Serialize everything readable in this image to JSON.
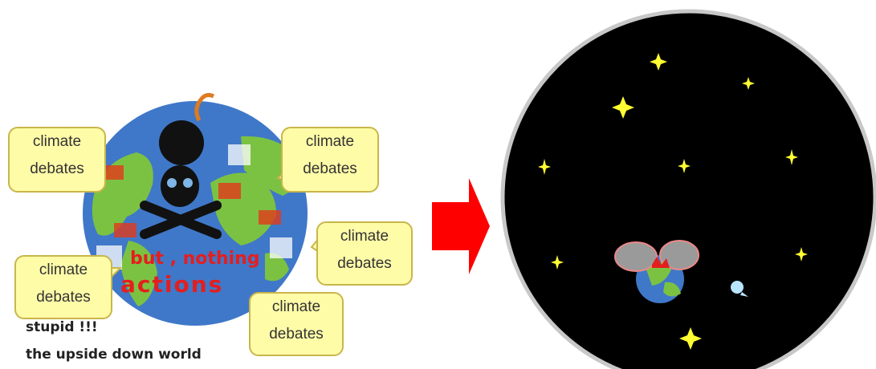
{
  "left_panel": {
    "bubbles": [
      {
        "line1": "climate",
        "line2": "debates"
      },
      {
        "line1": "climate",
        "line2": "debates"
      },
      {
        "line1": "climate",
        "line2": "debates"
      },
      {
        "line1": "climate",
        "line2": "debates"
      },
      {
        "line1": "climate",
        "line2": "debates"
      }
    ],
    "globe_text": {
      "line1": "but , nothing",
      "line2": "actions"
    },
    "caption1": "stupid !!!",
    "caption2": "the upside down world"
  },
  "colors": {
    "ocean": "#3f78c8",
    "land": "#7cc242",
    "bubble_fill": "#fffca8",
    "arrow": "#ff0000",
    "space": "#000000",
    "star": "#ffff33"
  }
}
